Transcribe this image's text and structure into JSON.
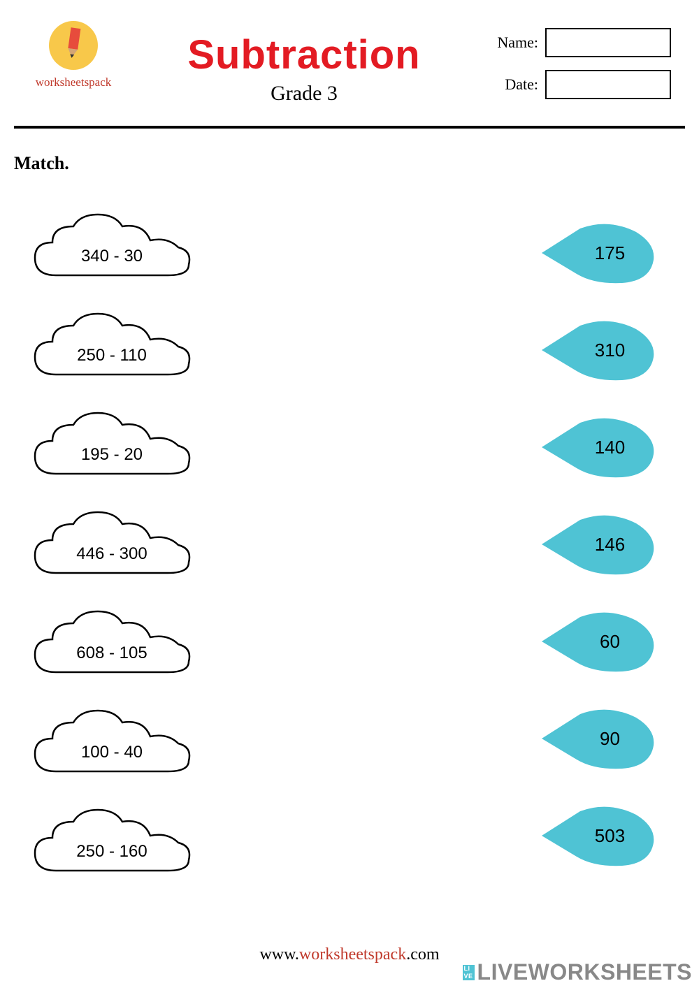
{
  "branding": {
    "logo_text": "worksheetspack",
    "logo_bg_color": "#f8c84a",
    "pencil_color": "#e74c3c",
    "brand_text_color": "#c0392b"
  },
  "header": {
    "title": "Subtraction",
    "title_color": "#e31b23",
    "title_fontsize": 58,
    "subtitle": "Grade 3",
    "subtitle_fontsize": 30,
    "name_label": "Name:",
    "date_label": "Date:"
  },
  "instruction": "Match.",
  "worksheet": {
    "cloud_stroke": "#000000",
    "cloud_fill": "#ffffff",
    "drop_fill": "#4fc3d4",
    "text_color": "#000000",
    "problems": [
      {
        "expression": "340 - 30"
      },
      {
        "expression": "250 - 110"
      },
      {
        "expression": "195 - 20"
      },
      {
        "expression": "446 - 300"
      },
      {
        "expression": "608 - 105"
      },
      {
        "expression": "100 - 40"
      },
      {
        "expression": "250 - 160"
      }
    ],
    "answers": [
      {
        "value": "175"
      },
      {
        "value": "310"
      },
      {
        "value": "140"
      },
      {
        "value": "146"
      },
      {
        "value": "60"
      },
      {
        "value": "90"
      },
      {
        "value": "503"
      }
    ]
  },
  "footer": {
    "url_prefix": "www.",
    "url_brand": "worksheetspack",
    "url_suffix": ".com"
  },
  "watermark": {
    "badge_top": "LI",
    "badge_bottom": "VE",
    "text": "LIVEWORKSHEETS",
    "badge_color": "#4fc3d4",
    "text_color": "#888888"
  }
}
